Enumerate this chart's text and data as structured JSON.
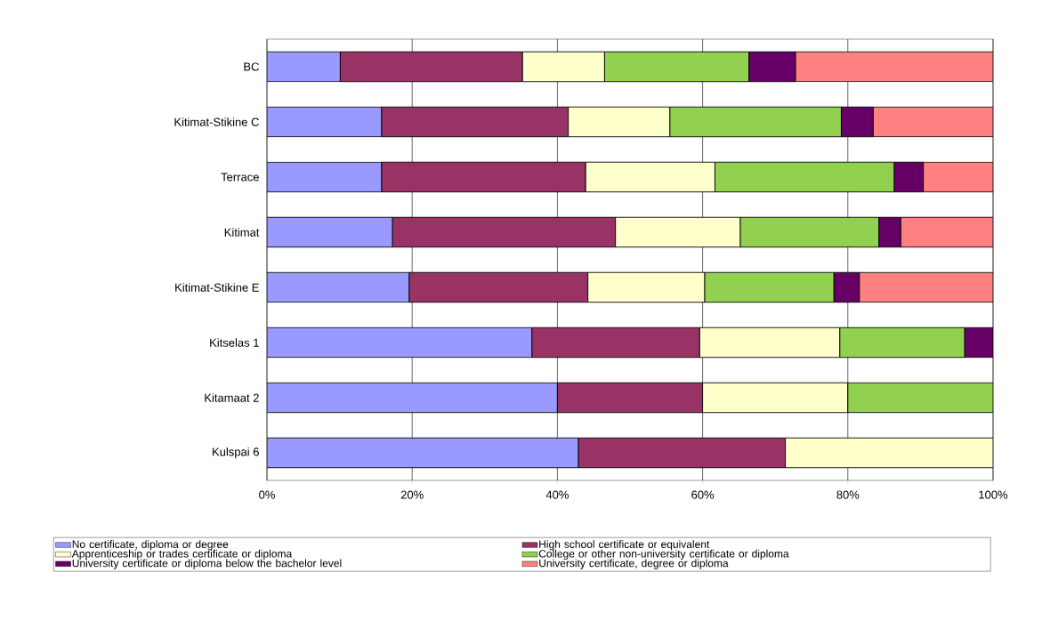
{
  "chart_data": {
    "type": "bar",
    "orientation": "horizontal",
    "stacked": true,
    "categories": [
      "BC",
      "Kitimat-Stikine C",
      "Terrace",
      "Kitimat",
      "Kitimat-Stikine E",
      "Kitselas 1",
      "Kitamaat 2",
      "Kulspai 6"
    ],
    "series": [
      {
        "name": "No certificate, diploma or degree",
        "color": "#9999ff",
        "values": [
          10.1,
          15.8,
          15.8,
          17.3,
          19.6,
          36.5,
          40,
          42.9
        ]
      },
      {
        "name": "High school certificate or equivalent",
        "color": "#993366",
        "values": [
          25.1,
          25.7,
          28.1,
          30.7,
          24.6,
          23.1,
          20,
          28.5
        ]
      },
      {
        "name": "Apprenticeship or trades certificate or diploma",
        "color": "#ffffcc",
        "values": [
          11.3,
          14.0,
          17.8,
          17.2,
          16.1,
          19.3,
          20,
          28.6
        ]
      },
      {
        "name": "College or other non-university certificate or diploma",
        "color": "#92d050",
        "values": [
          19.9,
          23.6,
          24.7,
          19.1,
          17.8,
          17.2,
          20,
          null
        ]
      },
      {
        "name": "University certificate or diploma below the bachelor level",
        "color": "#660066",
        "values": [
          6.4,
          4.4,
          4.0,
          3.0,
          3.5,
          3.9,
          null,
          null
        ]
      },
      {
        "name": "University certificate, degree or diploma",
        "color": "#ff8080",
        "values": [
          27.2,
          16.5,
          9.6,
          12.7,
          18.4,
          null,
          null,
          null
        ]
      }
    ],
    "xlim": [
      0,
      100
    ],
    "xticks": [
      {
        "value": 0,
        "label": "0%"
      },
      {
        "value": 20,
        "label": "20%"
      },
      {
        "value": 40,
        "label": "40%"
      },
      {
        "value": 60,
        "label": "60%"
      },
      {
        "value": 80,
        "label": "80%"
      },
      {
        "value": 100,
        "label": "100%"
      }
    ],
    "grid": "x",
    "legend": "bottom"
  }
}
